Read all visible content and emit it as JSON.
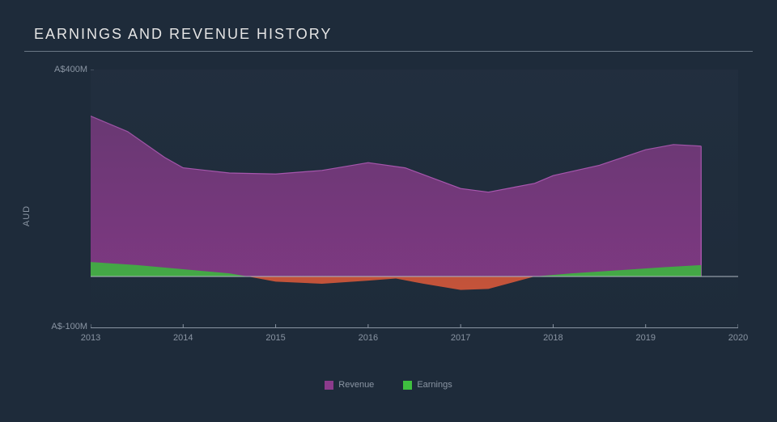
{
  "chart": {
    "type": "area",
    "title": "EARNINGS AND REVENUE HISTORY",
    "background_color": "#1e2b3a",
    "plot_bg_top": "rgba(40,53,70,0.35)",
    "title_color": "#e5e5e5",
    "tick_color": "#8a95a3",
    "rule_color": "#6a7785",
    "title_fontsize": 18,
    "tick_fontsize": 11,
    "y_axis_label": "AUD",
    "ylim": [
      -100,
      400
    ],
    "y_ticks": [
      {
        "value": 400,
        "label": "A$400M"
      },
      {
        "value": -100,
        "label": "A$-100M"
      }
    ],
    "x_ticks": [
      2013,
      2014,
      2015,
      2016,
      2017,
      2018,
      2019,
      2020
    ],
    "xlim": [
      2013,
      2020
    ],
    "zero_line_color": "#b9c1cb",
    "zero_line_width": 1,
    "axis_color": "#8a95a3",
    "series": {
      "revenue": {
        "label": "Revenue",
        "fill_color": "#8c3b8c",
        "fill_opacity": 0.92,
        "stroke_color": "#c85fc8",
        "stroke_width": 1.2,
        "points": [
          [
            2013.0,
            310
          ],
          [
            2013.4,
            280
          ],
          [
            2013.8,
            230
          ],
          [
            2014.0,
            210
          ],
          [
            2014.5,
            200
          ],
          [
            2015.0,
            198
          ],
          [
            2015.5,
            205
          ],
          [
            2016.0,
            220
          ],
          [
            2016.4,
            210
          ],
          [
            2017.0,
            170
          ],
          [
            2017.3,
            163
          ],
          [
            2017.8,
            180
          ],
          [
            2018.0,
            195
          ],
          [
            2018.5,
            215
          ],
          [
            2019.0,
            245
          ],
          [
            2019.3,
            255
          ],
          [
            2019.6,
            252
          ],
          [
            2019.6,
            252
          ]
        ]
      },
      "earnings_pos": {
        "label": "Earnings",
        "fill_color": "#3fbf3f",
        "fill_opacity": 0.9,
        "stroke_color": "#4fe04f",
        "stroke_width": 1,
        "points": [
          [
            2013.0,
            28
          ],
          [
            2013.5,
            22
          ],
          [
            2014.0,
            14
          ],
          [
            2014.5,
            6
          ],
          [
            2014.7,
            0
          ],
          [
            2017.8,
            0
          ],
          [
            2018.2,
            6
          ],
          [
            2018.7,
            12
          ],
          [
            2019.2,
            18
          ],
          [
            2019.6,
            22
          ]
        ]
      },
      "earnings_neg": {
        "fill_color": "#e05a3a",
        "fill_opacity": 0.9,
        "stroke_color": "#ff6a45",
        "stroke_width": 1,
        "points": [
          [
            2014.7,
            0
          ],
          [
            2015.0,
            -10
          ],
          [
            2015.5,
            -14
          ],
          [
            2016.0,
            -8
          ],
          [
            2016.3,
            -4
          ],
          [
            2016.6,
            -14
          ],
          [
            2017.0,
            -26
          ],
          [
            2017.3,
            -24
          ],
          [
            2017.8,
            0
          ]
        ]
      }
    },
    "legend": [
      {
        "key": "revenue",
        "label": "Revenue",
        "color": "#8c3b8c"
      },
      {
        "key": "earnings",
        "label": "Earnings",
        "color": "#3fbf3f"
      }
    ]
  }
}
